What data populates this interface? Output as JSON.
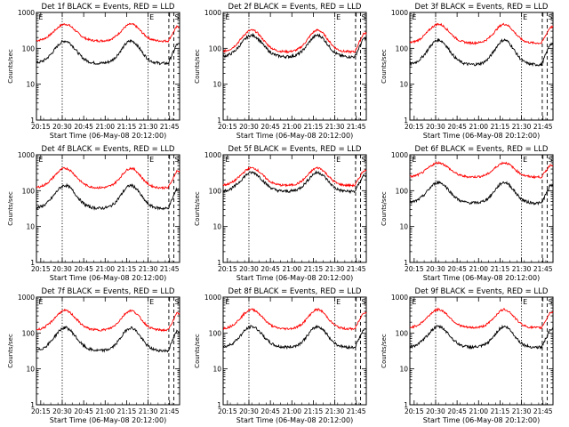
{
  "chart_data": {
    "type": "line",
    "layout": "3x3 grid",
    "y_scale": "log",
    "ylim": [
      1,
      1000
    ],
    "ylabel": "Counts/sec",
    "xlabel": "Start Time (06-May-08 20:12:00)",
    "x_range_minutes": [
      0,
      100
    ],
    "x_tick_labels": [
      "20:15",
      "20:30",
      "20:45",
      "21:00",
      "21:15",
      "21:30",
      "21:45"
    ],
    "x_tick_minutes": [
      3,
      18,
      33,
      48,
      63,
      78,
      93
    ],
    "y_tick_labels": [
      "1",
      "10",
      "100",
      "1000"
    ],
    "y_tick_values": [
      1,
      10,
      100,
      1000
    ],
    "series_colors": {
      "events": "#000000",
      "lld": "#ff0000"
    },
    "marker_labels": {
      "e": "E",
      "s": "S"
    },
    "markers_minutes": {
      "dotted": [
        18,
        78
      ],
      "dashed": [
        92.5,
        96
      ]
    },
    "panels": [
      {
        "title": "Det 1f BLACK = Events, RED = LLD",
        "events_min": 38,
        "events_max": 160,
        "lld_min": 160,
        "lld_max": 470
      },
      {
        "title": "Det 2f BLACK = Events, RED = LLD",
        "events_min": 58,
        "events_max": 230,
        "lld_min": 80,
        "lld_max": 320
      },
      {
        "title": "Det 3f BLACK = Events, RED = LLD",
        "events_min": 35,
        "events_max": 170,
        "lld_min": 140,
        "lld_max": 470
      },
      {
        "title": "Det 4f BLACK = Events, RED = LLD",
        "events_min": 32,
        "events_max": 140,
        "lld_min": 120,
        "lld_max": 420
      },
      {
        "title": "Det 5f BLACK = Events, RED = LLD",
        "events_min": 95,
        "events_max": 320,
        "lld_min": 140,
        "lld_max": 430
      },
      {
        "title": "Det 6f BLACK = Events, RED = LLD",
        "events_min": 45,
        "events_max": 170,
        "lld_min": 240,
        "lld_max": 600
      },
      {
        "title": "Det 7f BLACK = Events, RED = LLD",
        "events_min": 32,
        "events_max": 140,
        "lld_min": 120,
        "lld_max": 420
      },
      {
        "title": "Det 8f BLACK = Events, RED = LLD",
        "events_min": 40,
        "events_max": 150,
        "lld_min": 130,
        "lld_max": 450
      },
      {
        "title": "Det 9f BLACK = Events, RED = LLD",
        "events_min": 40,
        "events_max": 150,
        "lld_min": 140,
        "lld_max": 450
      }
    ]
  }
}
